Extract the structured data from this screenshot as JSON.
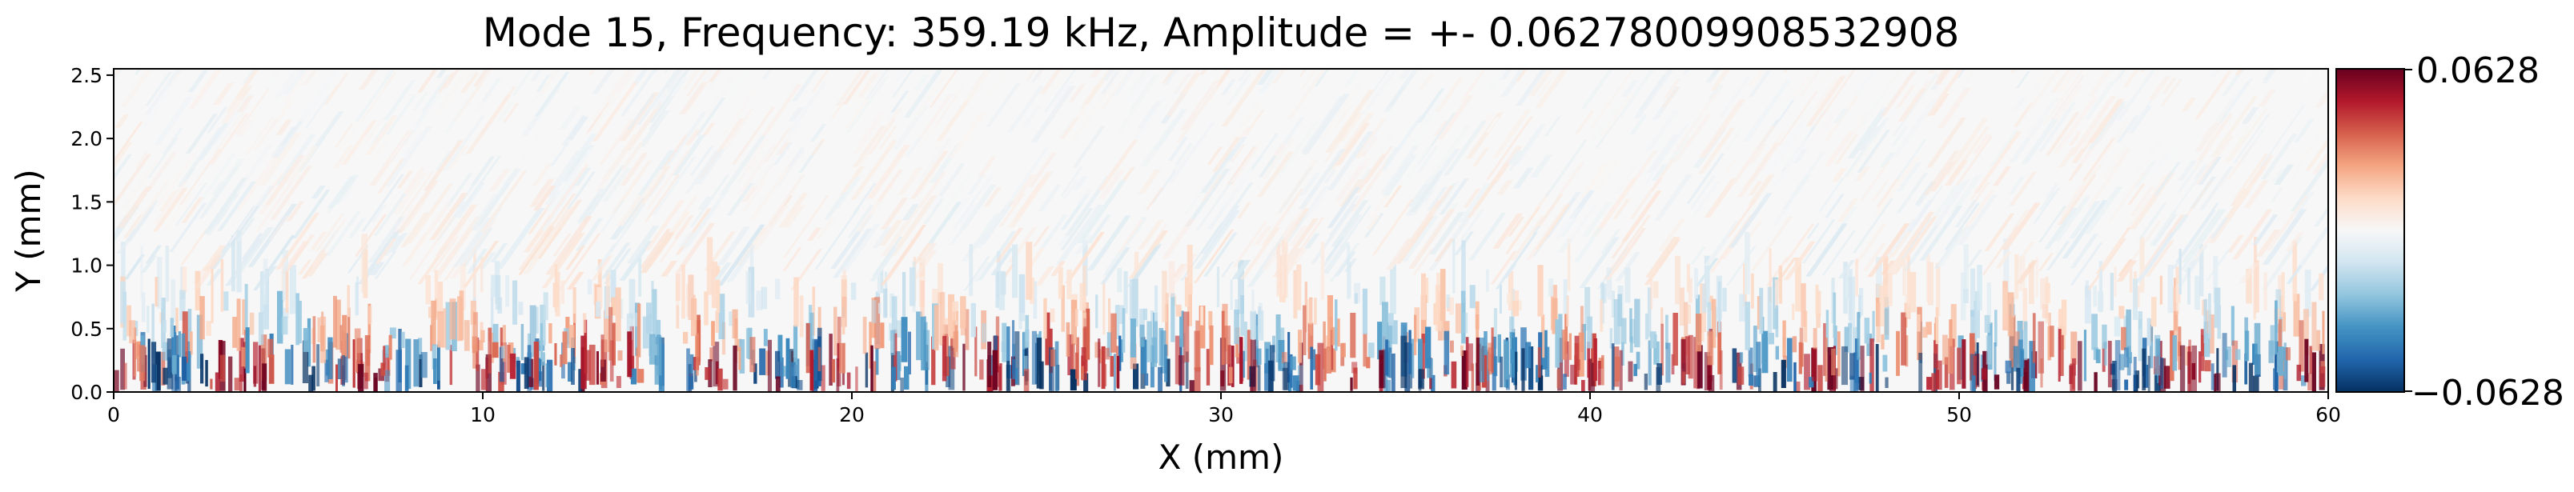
{
  "chart_data": {
    "type": "heatmap",
    "title": "Mode 15, Frequency: 359.19 kHz, Amplitude = +- 0.06278009908532908",
    "xlabel": "X (mm)",
    "ylabel": "Y (mm)",
    "xlim": [
      0,
      60
    ],
    "ylim": [
      0,
      2.55
    ],
    "x_ticks": [
      "0",
      "10",
      "20",
      "30",
      "40",
      "50",
      "60"
    ],
    "y_ticks": [
      "0.0",
      "0.5",
      "1.0",
      "1.5",
      "2.0",
      "2.5"
    ],
    "colorbar": {
      "colormap": "RdBu_r",
      "vmin": -0.0628,
      "vmax": 0.0628,
      "tick_labels": [
        "0.0628",
        "−0.0628"
      ],
      "colors": [
        "#053061",
        "#2166ac",
        "#4393c3",
        "#92c5de",
        "#d1e5f0",
        "#f7f7f7",
        "#fddbc7",
        "#f4a582",
        "#d6604d",
        "#b2182b",
        "#67001f"
      ]
    },
    "field_description": "Strong alternating red/blue streaks near Y=0–0.6 mm along the full X range, fading to near-zero (white) with faint diagonal stripes above Y=1.0 mm"
  }
}
